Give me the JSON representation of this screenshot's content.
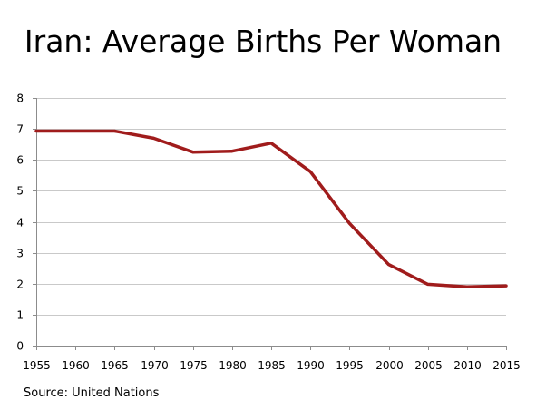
{
  "chart_data": {
    "type": "line",
    "title": "Iran: Average Births Per Woman",
    "xlabel": "",
    "ylabel": "",
    "x": [
      1955,
      1960,
      1965,
      1970,
      1975,
      1980,
      1985,
      1990,
      1995,
      2000,
      2005,
      2010,
      2015
    ],
    "x_tick_labels": [
      "1955",
      "1960",
      "1965",
      "1970",
      "1975",
      "1980",
      "1985",
      "1990",
      "1995",
      "2000",
      "2005",
      "2010",
      "2015"
    ],
    "ylim": [
      0,
      8
    ],
    "y_tick_labels": [
      "0",
      "1",
      "2",
      "3",
      "4",
      "5",
      "6",
      "7",
      "8"
    ],
    "series": [
      {
        "values": [
          6.93,
          6.93,
          6.93,
          6.7,
          6.25,
          6.28,
          6.54,
          5.62,
          3.95,
          2.62,
          1.98,
          1.9,
          1.93
        ],
        "color": "#a01c1c"
      }
    ],
    "grid": true,
    "legend": "none",
    "source": "Source: United Nations"
  }
}
